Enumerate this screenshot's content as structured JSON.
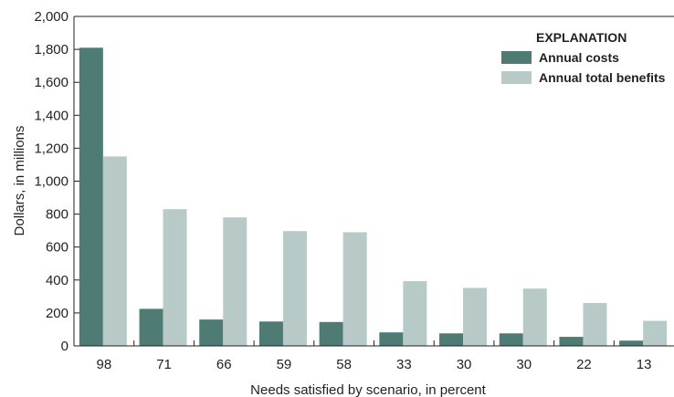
{
  "chart_data": {
    "type": "bar",
    "categories": [
      "98",
      "71",
      "66",
      "59",
      "58",
      "33",
      "30",
      "30",
      "22",
      "13"
    ],
    "series": [
      {
        "name": "Annual costs",
        "color": "#4e7b74",
        "values": [
          1810,
          225,
          160,
          148,
          145,
          82,
          76,
          76,
          55,
          32
        ]
      },
      {
        "name": "Annual total benefits",
        "color": "#b7cac7",
        "values": [
          1150,
          830,
          780,
          697,
          690,
          393,
          352,
          348,
          260,
          152
        ]
      }
    ],
    "xlabel": "Needs satisfied by scenario, in percent",
    "ylabel": "Dollars, in millions",
    "ylim": [
      0,
      2000
    ],
    "yticks": [
      0,
      200,
      400,
      600,
      800,
      1000,
      1200,
      1400,
      1600,
      1800,
      2000
    ],
    "ytick_labels": [
      "0",
      "200",
      "400",
      "600",
      "800",
      "1,000",
      "1,200",
      "1,400",
      "1,600",
      "1,800",
      "2,000"
    ],
    "legend": {
      "title": "EXPLANATION",
      "placement": "top-right",
      "entries": [
        "Annual costs",
        "Annual total benefits"
      ]
    },
    "grid": false
  }
}
